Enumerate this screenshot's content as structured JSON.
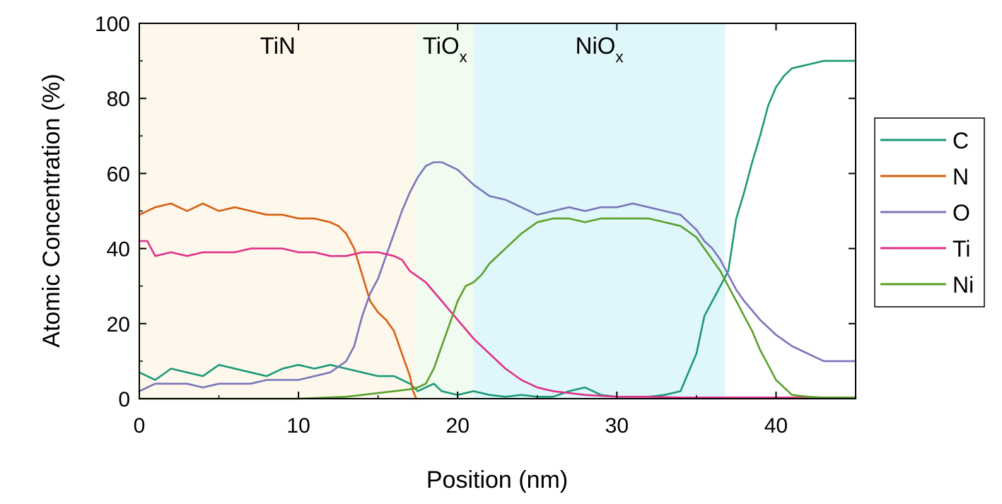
{
  "chart_data": {
    "type": "line",
    "xlabel": "Position (nm)",
    "ylabel": "Atomic Concentration (%)",
    "xlim": [
      0,
      45
    ],
    "ylim": [
      0,
      100
    ],
    "x_ticks": [
      "0",
      "10",
      "20",
      "30",
      "40"
    ],
    "y_ticks": [
      "0",
      "20",
      "40",
      "60",
      "80",
      "100"
    ],
    "grid": false,
    "legend_position": "right",
    "regions": [
      {
        "label": "TiN",
        "subscript": "",
        "x_start": 0,
        "x_end": 17.4,
        "color": "#fdf7ec"
      },
      {
        "label": "TiO",
        "subscript": "x",
        "x_start": 17.4,
        "x_end": 21.0,
        "color": "#f1fbf0"
      },
      {
        "label": "NiO",
        "subscript": "x",
        "x_start": 21.0,
        "x_end": 36.8,
        "color": "#dff6fa"
      }
    ],
    "series": [
      {
        "name": "C",
        "color": "#1a9a78",
        "x": [
          0,
          1,
          2,
          3,
          4,
          5,
          6,
          7,
          8,
          9,
          10,
          11,
          12,
          13,
          14,
          15,
          16,
          17,
          17.5,
          18,
          18.5,
          19,
          20,
          21,
          22,
          23,
          24,
          25,
          26,
          27,
          28,
          29,
          30,
          31,
          32,
          33,
          34,
          34.5,
          35,
          35.5,
          36,
          36.5,
          37,
          37.5,
          38,
          38.5,
          39,
          39.5,
          40,
          40.5,
          41,
          42,
          43,
          44,
          45
        ],
        "y": [
          7,
          5,
          8,
          7,
          6,
          9,
          8,
          7,
          6,
          8,
          9,
          8,
          9,
          8,
          7,
          6,
          6,
          4,
          2,
          3,
          4,
          2,
          1,
          2,
          1,
          0.5,
          1,
          0.5,
          0.5,
          2,
          3,
          1,
          0.5,
          0.5,
          0.5,
          1,
          2,
          7,
          12,
          22,
          26,
          30,
          34,
          48,
          55,
          63,
          70,
          78,
          83,
          86,
          88,
          89,
          90,
          90,
          90
        ]
      },
      {
        "name": "N",
        "color": "#d85f10",
        "x": [
          0,
          1,
          2,
          3,
          4,
          5,
          6,
          7,
          8,
          9,
          10,
          11,
          12,
          12.5,
          13,
          13.5,
          14,
          14.5,
          15,
          15.5,
          16,
          16.5,
          17,
          17.2,
          17.4
        ],
        "y": [
          49,
          51,
          52,
          50,
          52,
          50,
          51,
          50,
          49,
          49,
          48,
          48,
          47,
          46,
          44,
          40,
          33,
          26,
          23,
          21,
          18,
          12,
          6,
          2,
          0
        ]
      },
      {
        "name": "O",
        "color": "#7a75ba",
        "x": [
          0,
          1,
          2,
          3,
          4,
          5,
          6,
          7,
          8,
          9,
          10,
          11,
          12,
          13,
          13.5,
          14,
          14.5,
          15,
          15.5,
          16,
          16.5,
          17,
          17.5,
          18,
          18.5,
          19,
          20,
          21,
          22,
          23,
          24,
          25,
          26,
          27,
          28,
          29,
          30,
          31,
          32,
          33,
          34,
          34.5,
          35,
          35.5,
          36,
          36.5,
          37,
          37.5,
          38,
          39,
          40,
          41,
          42,
          43,
          44,
          45
        ],
        "y": [
          2,
          4,
          4,
          4,
          3,
          4,
          4,
          4,
          5,
          5,
          5,
          6,
          7,
          10,
          14,
          22,
          28,
          32,
          38,
          44,
          50,
          55,
          59,
          62,
          63,
          63,
          61,
          57,
          54,
          53,
          51,
          49,
          50,
          51,
          50,
          51,
          51,
          52,
          51,
          50,
          49,
          47,
          45,
          42,
          40,
          37,
          33,
          29,
          26,
          21,
          17,
          14,
          12,
          10,
          10,
          10
        ]
      },
      {
        "name": "Ti",
        "color": "#e0308a",
        "x": [
          0,
          0.5,
          1,
          2,
          3,
          4,
          5,
          6,
          7,
          8,
          9,
          10,
          11,
          12,
          13,
          14,
          15,
          16,
          16.5,
          17,
          18,
          19,
          20,
          21,
          22,
          23,
          24,
          25,
          26,
          27,
          28,
          30,
          32,
          34,
          36,
          38,
          40,
          42,
          44,
          45
        ],
        "y": [
          42,
          42,
          38,
          39,
          38,
          39,
          39,
          39,
          40,
          40,
          40,
          39,
          39,
          38,
          38,
          39,
          39,
          38,
          37,
          34,
          31,
          26,
          21,
          16,
          12,
          8,
          5,
          3,
          2,
          1.5,
          1,
          0.5,
          0.5,
          0.3,
          0.3,
          0.3,
          0.3,
          0.3,
          0.3,
          0.3
        ]
      },
      {
        "name": "Ni",
        "color": "#5aa02a",
        "x": [
          0,
          5,
          10,
          13,
          14,
          15,
          16,
          17,
          17.5,
          18,
          18.5,
          19,
          19.5,
          20,
          20.5,
          21,
          21.5,
          22,
          22.5,
          23,
          24,
          25,
          26,
          27,
          28,
          29,
          30,
          31,
          32,
          33,
          34,
          35,
          35.5,
          36,
          36.5,
          37,
          37.5,
          38,
          38.5,
          39,
          39.5,
          40,
          40.5,
          41,
          42,
          43,
          44,
          45
        ],
        "y": [
          0,
          0,
          0,
          0.5,
          1,
          1.5,
          2,
          2.5,
          3,
          4,
          8,
          14,
          20,
          26,
          30,
          31,
          33,
          36,
          38,
          40,
          44,
          47,
          48,
          48,
          47,
          48,
          48,
          48,
          48,
          47,
          46,
          43,
          40,
          37,
          34,
          30,
          26,
          22,
          18,
          13,
          9,
          5,
          3,
          1,
          0.5,
          0.3,
          0.3,
          0.3
        ]
      }
    ]
  }
}
